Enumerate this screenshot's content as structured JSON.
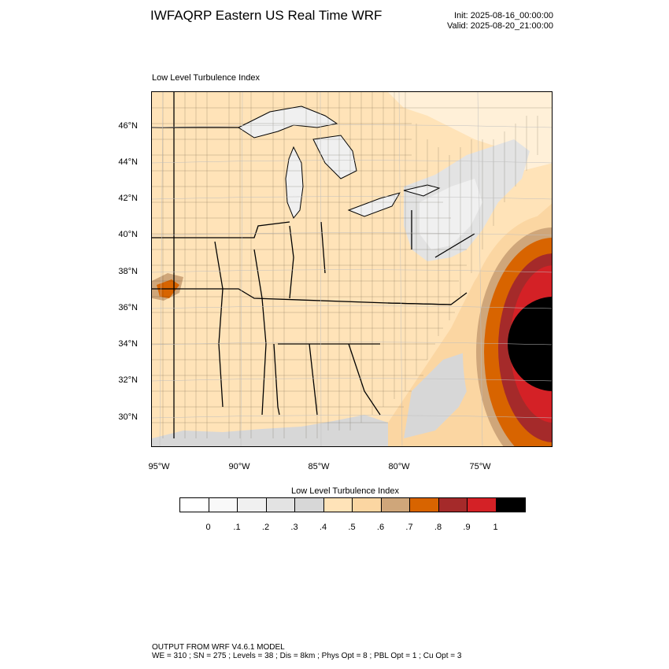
{
  "header": {
    "title": "IWFAQRP Eastern US Real Time WRF",
    "init": "Init: 2025-08-16_00:00:00",
    "valid": "Valid: 2025-08-20_21:00:00"
  },
  "map": {
    "field_label": "Low Level Turbulence Index",
    "lat_labels": [
      "46°N",
      "44°N",
      "42°N",
      "40°N",
      "38°N",
      "36°N",
      "34°N",
      "32°N",
      "30°N"
    ],
    "lon_labels": [
      "95°W",
      "90°W",
      "85°W",
      "80°W",
      "75°W"
    ]
  },
  "colorbar": {
    "title": "Low Level Turbulence Index",
    "colors": [
      "#ffffff",
      "#f9f9f9",
      "#f0f0f0",
      "#e3e3e3",
      "#d7d7d7",
      "#ffe3b8",
      "#fbd6a2",
      "#cfa67a",
      "#d86400",
      "#a52a2a",
      "#d42126",
      "#000000"
    ],
    "ticks": [
      "0",
      ".1",
      ".2",
      ".3",
      ".4",
      ".5",
      ".6",
      ".7",
      ".8",
      ".9",
      "1"
    ]
  },
  "footer": {
    "line1": "OUTPUT FROM WRF V4.6.1 MODEL",
    "line2": "WE = 310 ; SN = 275 ; Levels = 38 ; Dis = 8km ; Phys Opt = 8 ; PBL Opt = 1 ; Cu Opt = 3"
  }
}
